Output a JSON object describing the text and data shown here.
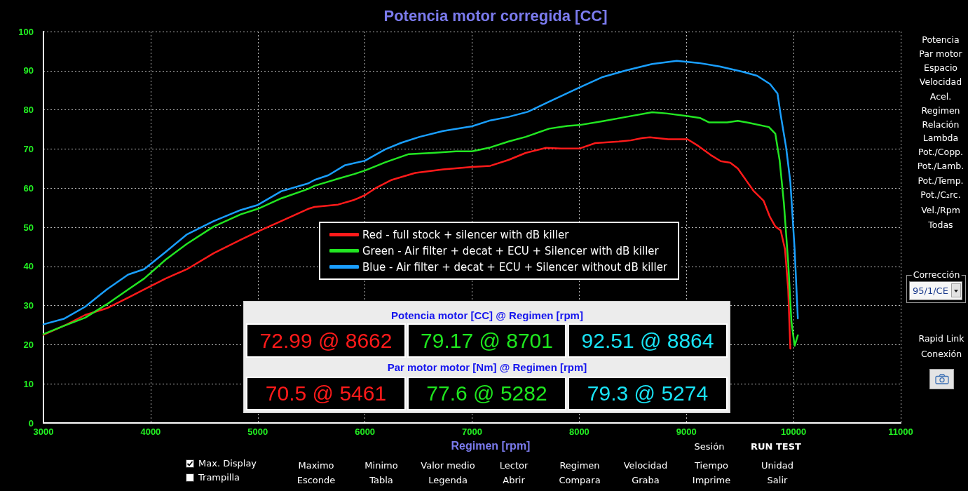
{
  "chart_data": {
    "type": "line",
    "title": "Potencia motor corregida [CC]",
    "xlabel": "Regimen [rpm]",
    "xlim": [
      3000,
      11000
    ],
    "xticks": [
      3000,
      4000,
      5000,
      6000,
      7000,
      8000,
      9000,
      10000,
      11000
    ],
    "ylim": [
      0,
      100
    ],
    "yticks": [
      0,
      10,
      20,
      30,
      40,
      50,
      60,
      70,
      80,
      90,
      100
    ],
    "grid": true,
    "legend": "center",
    "marker": "none",
    "line_style": "solid",
    "series": [
      {
        "name": "Red - full stock + silencer with dB killer",
        "color": "#ff1a1a",
        "x": [
          3000,
          3220,
          3390,
          3590,
          3790,
          3940,
          4140,
          4340,
          4590,
          4840,
          5000,
          5220,
          5470,
          5530,
          5750,
          5900,
          6000,
          6100,
          6250,
          6470,
          6730,
          7000,
          7170,
          7340,
          7500,
          7690,
          7830,
          8000,
          8150,
          8370,
          8480,
          8590,
          8660,
          8830,
          9010,
          9110,
          9230,
          9320,
          9410,
          9480,
          9560,
          9630,
          9720,
          9780,
          9830,
          9880,
          9920,
          9950,
          9970
        ],
        "values": [
          22.5,
          25.2,
          27.6,
          29.3,
          32.0,
          34.1,
          36.9,
          39.3,
          43.4,
          46.8,
          48.9,
          51.6,
          54.7,
          55.2,
          55.8,
          57.0,
          58.2,
          60.0,
          62.1,
          63.9,
          64.8,
          65.4,
          65.7,
          67.2,
          69.0,
          70.3,
          70.1,
          70.1,
          71.5,
          71.9,
          72.2,
          72.8,
          73.0,
          72.5,
          72.5,
          70.8,
          68.4,
          66.9,
          66.5,
          65.0,
          61.9,
          59.2,
          56.8,
          52.6,
          50.2,
          49.2,
          44.4,
          34.1,
          19.0
        ]
      },
      {
        "name": "Green - Air filter + decat + ECU + Silencer with dB killer",
        "color": "#22e622",
        "x": [
          3000,
          3190,
          3390,
          3590,
          3790,
          3940,
          4140,
          4340,
          4590,
          4840,
          5000,
          5220,
          5470,
          5530,
          5750,
          5900,
          6000,
          6190,
          6410,
          6630,
          6850,
          7000,
          7170,
          7340,
          7500,
          7720,
          7890,
          8000,
          8220,
          8440,
          8680,
          8810,
          9010,
          9130,
          9210,
          9380,
          9480,
          9580,
          9770,
          9830,
          9870,
          9910,
          9950,
          9980,
          10010,
          10040
        ],
        "values": [
          22.7,
          24.8,
          26.9,
          30.3,
          34.1,
          36.9,
          41.7,
          45.8,
          50.2,
          53.3,
          54.7,
          57.4,
          59.8,
          60.6,
          62.4,
          63.6,
          64.5,
          66.6,
          68.7,
          69.0,
          69.4,
          69.4,
          70.4,
          71.9,
          73.1,
          75.2,
          75.9,
          76.1,
          77.1,
          78.2,
          79.4,
          79.1,
          78.4,
          77.9,
          76.8,
          76.8,
          77.2,
          76.7,
          75.6,
          73.9,
          67.1,
          56.1,
          41.0,
          25.9,
          19.7,
          22.4
        ]
      },
      {
        "name": "Blue - Air filter + decat + ECU + Silencer without dB killer",
        "color": "#1a9fff",
        "x": [
          3000,
          3190,
          3390,
          3590,
          3790,
          3940,
          4140,
          4340,
          4590,
          4840,
          5000,
          5220,
          5470,
          5530,
          5660,
          5810,
          6000,
          6190,
          6340,
          6510,
          6730,
          7000,
          7170,
          7340,
          7520,
          7720,
          8000,
          8220,
          8440,
          8680,
          8910,
          9110,
          9310,
          9530,
          9660,
          9780,
          9850,
          9880,
          9930,
          9970,
          10010,
          10040
        ],
        "values": [
          25.2,
          26.6,
          29.7,
          34.1,
          37.9,
          39.3,
          43.7,
          48.2,
          51.6,
          54.4,
          55.7,
          59.2,
          61.2,
          62.1,
          63.3,
          65.8,
          67.0,
          69.9,
          71.6,
          73.1,
          74.6,
          75.8,
          77.3,
          78.2,
          79.5,
          82.1,
          85.7,
          88.4,
          90.1,
          91.7,
          92.5,
          92.0,
          91.1,
          89.7,
          88.7,
          86.6,
          84.2,
          78.7,
          70.5,
          61.6,
          44.4,
          26.7
        ]
      }
    ],
    "annotations": [
      "Potencia motor [CC] @ Regimen [rpm]",
      "72.99 @ 8662",
      "79.17 @ 8701",
      "92.51 @ 8864",
      "Par motor motor [Nm] @ Regimen [rpm]",
      "70.5 @ 5461",
      "77.6 @ 5282",
      "79.3 @ 5274",
      "Potencia",
      "Par motor",
      "Espacio",
      "Velocidad",
      "Acel.",
      "Regimen",
      "Relación",
      "Lambda",
      "Pot./Copp.",
      "Pot./Lamb.",
      "Pot./Temp.",
      "Pot./C₂rc.",
      "Vel./Rpm",
      "Todas",
      "Corrección",
      "95/1/CE",
      "Rapid Link",
      "Conexión",
      "Sesión",
      "RUN TEST",
      "Max. Display",
      "Trampilla",
      "Maximo",
      "Esconde",
      "Minimo",
      "Tabla",
      "Valor medio",
      "Legenda",
      "Lector",
      "Abrir",
      "Regimen",
      "Compara",
      "Velocidad",
      "Graba",
      "Tiempo",
      "Imprime",
      "Unidad",
      "Salir"
    ]
  }
}
